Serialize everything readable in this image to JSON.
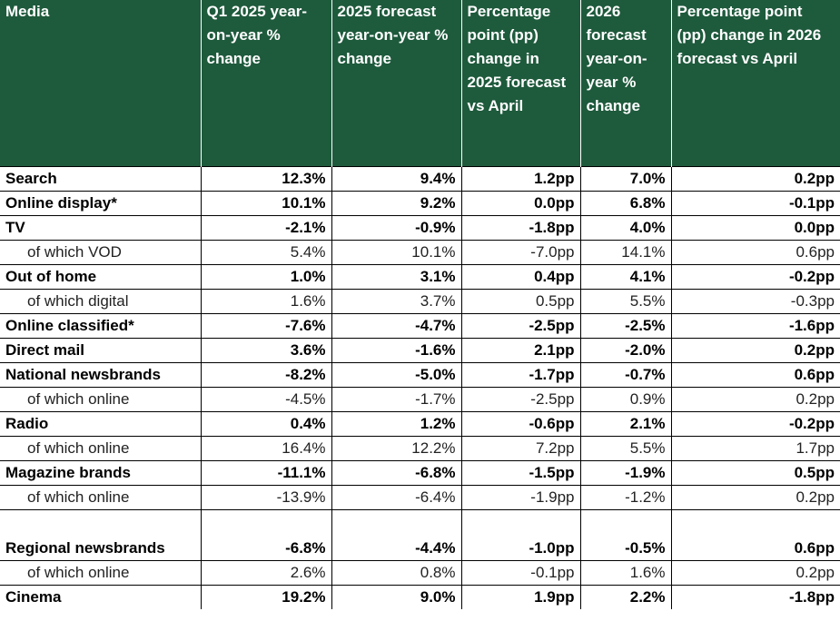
{
  "columns": [
    "Media",
    "Q1 2025 year-on-year % change",
    "2025 forecast year-on-year % change",
    "Percentage point (pp) change in 2025 forecast vs April",
    "2026 forecast year-on-year % change",
    "Percentage point (pp) change in 2026 forecast vs April"
  ],
  "rows": [
    {
      "media": "Search",
      "q1": "12.3%",
      "f2025": "9.4%",
      "pp2025": "1.2pp",
      "f2026": "7.0%",
      "pp2026": "0.2pp"
    },
    {
      "media": "Online display*",
      "q1": "10.1%",
      "f2025": "9.2%",
      "pp2025": "0.0pp",
      "f2026": "6.8%",
      "pp2026": "-0.1pp"
    },
    {
      "media": "TV",
      "q1": "-2.1%",
      "f2025": "-0.9%",
      "pp2025": "-1.8pp",
      "f2026": "4.0%",
      "pp2026": "0.0pp"
    },
    {
      "media": "of which VOD",
      "q1": "5.4%",
      "f2025": "10.1%",
      "pp2025": "-7.0pp",
      "f2026": "14.1%",
      "pp2026": "0.6pp"
    },
    {
      "media": "Out of home",
      "q1": "1.0%",
      "f2025": "3.1%",
      "pp2025": "0.4pp",
      "f2026": "4.1%",
      "pp2026": "-0.2pp"
    },
    {
      "media": "of which digital",
      "q1": "1.6%",
      "f2025": "3.7%",
      "pp2025": "0.5pp",
      "f2026": "5.5%",
      "pp2026": "-0.3pp"
    },
    {
      "media": "Online classified*",
      "q1": "-7.6%",
      "f2025": "-4.7%",
      "pp2025": "-2.5pp",
      "f2026": "-2.5%",
      "pp2026": "-1.6pp"
    },
    {
      "media": "Direct mail",
      "q1": "3.6%",
      "f2025": "-1.6%",
      "pp2025": "2.1pp",
      "f2026": "-2.0%",
      "pp2026": "0.2pp"
    },
    {
      "media": "National newsbrands",
      "q1": "-8.2%",
      "f2025": "-5.0%",
      "pp2025": "-1.7pp",
      "f2026": "-0.7%",
      "pp2026": "0.6pp"
    },
    {
      "media": "of which online",
      "q1": "-4.5%",
      "f2025": "-1.7%",
      "pp2025": "-2.5pp",
      "f2026": "0.9%",
      "pp2026": "0.2pp"
    },
    {
      "media": "Radio",
      "q1": "0.4%",
      "f2025": "1.2%",
      "pp2025": "-0.6pp",
      "f2026": "2.1%",
      "pp2026": "-0.2pp"
    },
    {
      "media": "of which online",
      "q1": "16.4%",
      "f2025": "12.2%",
      "pp2025": "7.2pp",
      "f2026": "5.5%",
      "pp2026": "1.7pp"
    },
    {
      "media": "Magazine brands",
      "q1": "-11.1%",
      "f2025": "-6.8%",
      "pp2025": "-1.5pp",
      "f2026": "-1.9%",
      "pp2026": "0.5pp"
    },
    {
      "media": "of which online",
      "q1": "-13.9%",
      "f2025": "-6.4%",
      "pp2025": "-1.9pp",
      "f2026": "-1.2%",
      "pp2026": "0.2pp"
    },
    {
      "media": "Regional newsbrands",
      "q1": "-6.8%",
      "f2025": "-4.4%",
      "pp2025": "-1.0pp",
      "f2026": "-0.5%",
      "pp2026": "0.6pp"
    },
    {
      "media": "of which online",
      "q1": "2.6%",
      "f2025": "0.8%",
      "pp2025": "-0.1pp",
      "f2026": "1.6%",
      "pp2026": "0.2pp"
    },
    {
      "media": "Cinema",
      "q1": "19.2%",
      "f2025": "9.0%",
      "pp2025": "1.9pp",
      "f2026": "2.2%",
      "pp2026": "-1.8pp"
    }
  ],
  "colors": {
    "header_bg": "#1e5a3c",
    "header_text": "#ffffff",
    "grid": "#000000"
  }
}
